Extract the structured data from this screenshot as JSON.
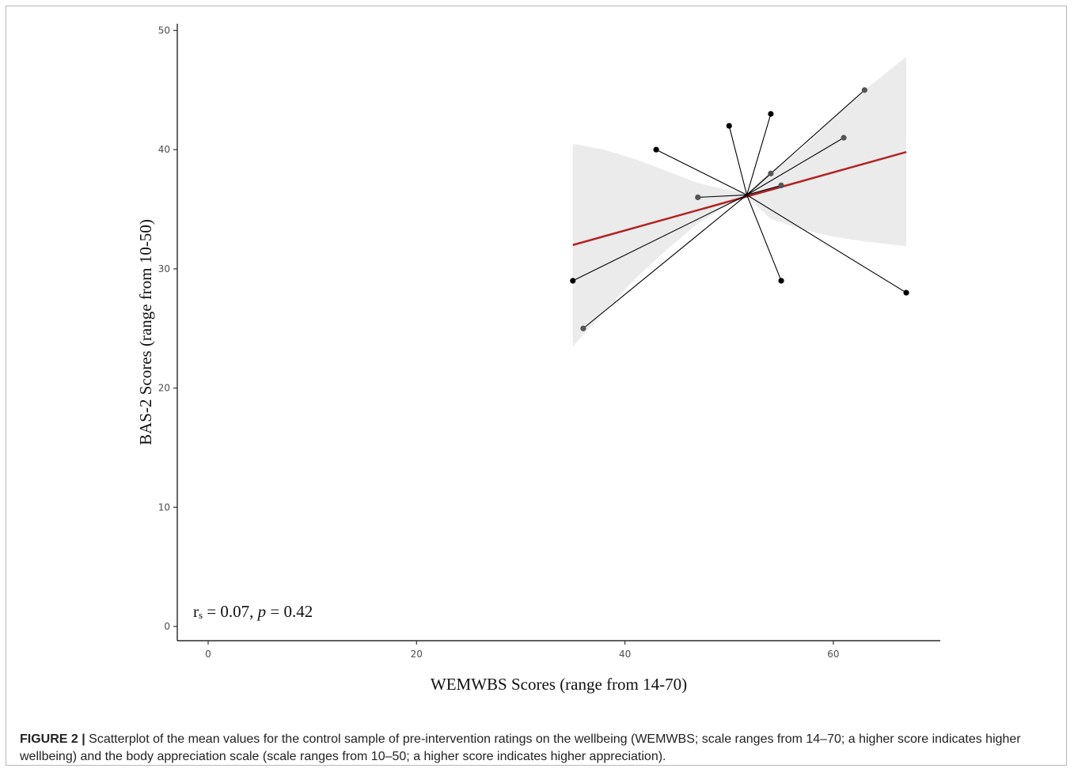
{
  "caption": {
    "label": "FIGURE 2 |",
    "text": " Scatterplot of the mean values for the control sample of pre-intervention ratings on the wellbeing (WEMWBS; scale ranges from 14–70; a higher score indicates higher wellbeing) and the body appreciation scale (scale ranges from 10–50; a higher score indicates higher appreciation)."
  },
  "chart_data": {
    "type": "scatter",
    "title": "",
    "xlabel": "WEMWBS Scores (range from 14-70)",
    "ylabel": "BAS-2 Scores (range from 10-50)",
    "xlim": [
      -3,
      70
    ],
    "ylim": [
      -1,
      50
    ],
    "x_ticks": [
      0,
      20,
      40,
      60
    ],
    "y_ticks": [
      0,
      10,
      20,
      30,
      40,
      50
    ],
    "grid": false,
    "annotation": {
      "r_symbol": "r",
      "r_subscript": "s",
      "text": " = 0.07, ",
      "p_symbol": "p",
      "p_text": " = 0.42"
    },
    "centroid": {
      "x": 51.7,
      "y": 36.2
    },
    "points": [
      {
        "x": 35,
        "y": 29,
        "shade": "black"
      },
      {
        "x": 36,
        "y": 25,
        "shade": "gray"
      },
      {
        "x": 43,
        "y": 40,
        "shade": "black"
      },
      {
        "x": 47,
        "y": 36,
        "shade": "gray"
      },
      {
        "x": 50,
        "y": 42,
        "shade": "black"
      },
      {
        "x": 54,
        "y": 43,
        "shade": "black"
      },
      {
        "x": 54,
        "y": 38,
        "shade": "gray"
      },
      {
        "x": 55,
        "y": 37,
        "shade": "gray"
      },
      {
        "x": 55,
        "y": 29,
        "shade": "black"
      },
      {
        "x": 61,
        "y": 41,
        "shade": "gray"
      },
      {
        "x": 63,
        "y": 45,
        "shade": "gray"
      },
      {
        "x": 67,
        "y": 28,
        "shade": "black"
      }
    ],
    "regression_line": {
      "x": [
        35,
        67
      ],
      "y": [
        32.0,
        39.8
      ],
      "color": "#b22222"
    },
    "confidence_band": {
      "x": [
        35,
        38,
        41,
        44,
        47,
        50,
        51.7,
        54,
        57,
        60,
        63,
        67
      ],
      "lower": [
        23.5,
        26.4,
        29.2,
        31.6,
        33.8,
        35.4,
        36.0,
        34.2,
        33.3,
        32.7,
        32.3,
        31.9
      ],
      "upper": [
        40.5,
        40.0,
        39.2,
        38.2,
        37.2,
        36.6,
        36.4,
        38.2,
        40.1,
        42.6,
        45.0,
        47.8
      ],
      "color": "#ebebeb"
    },
    "colors": {
      "point_black": "#000000",
      "point_gray": "#555555",
      "spoke": "#000000",
      "axis": "#000000"
    }
  }
}
